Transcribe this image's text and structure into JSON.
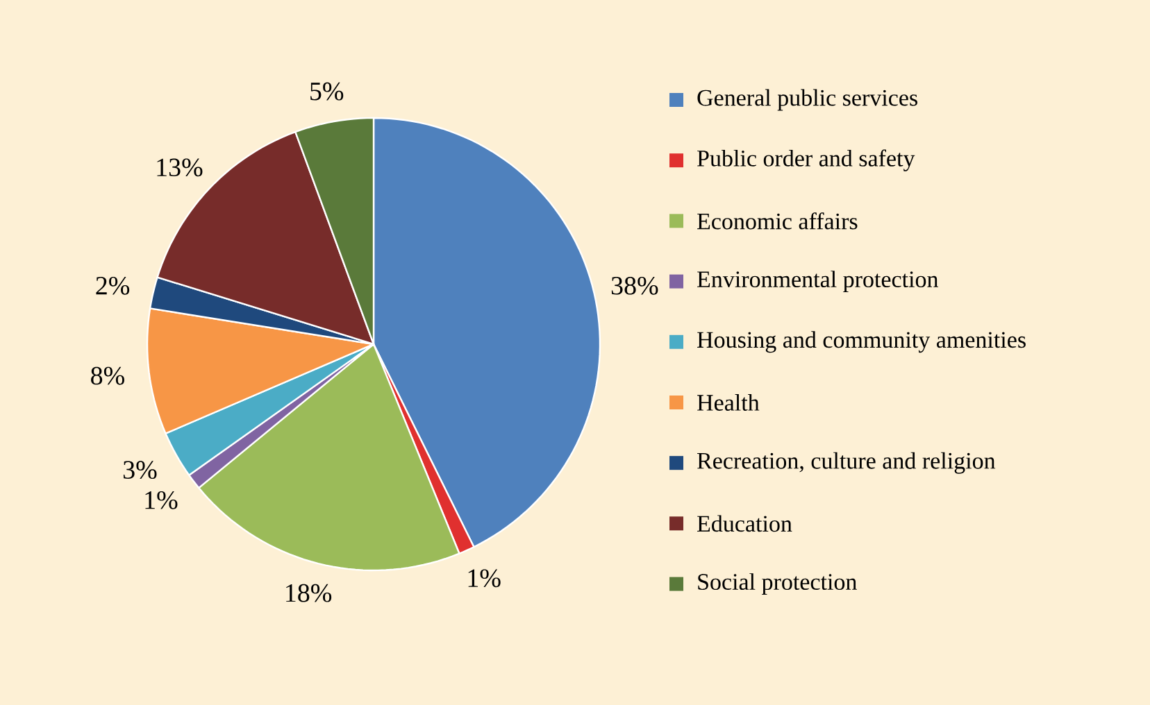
{
  "chart_data": {
    "type": "pie",
    "categories": [
      "General public services",
      "Public order and safety",
      "Economic affairs",
      "Environmental protection",
      "Housing and community amenities",
      "Health",
      "Recreation, culture and religion",
      "Education",
      "Social protection"
    ],
    "values": [
      38,
      1,
      18,
      1,
      3,
      8,
      2,
      13,
      5
    ],
    "value_labels": [
      "38%",
      "1%",
      "18%",
      "1%",
      "3%",
      "8%",
      "2%",
      "13%",
      "5%"
    ],
    "colors": [
      "#4f81bd",
      "#e0302f",
      "#9bbb59",
      "#8064a2",
      "#4bacc6",
      "#f79646",
      "#1f497d",
      "#772c2a",
      "#5a7a3a"
    ],
    "legend": "right"
  }
}
